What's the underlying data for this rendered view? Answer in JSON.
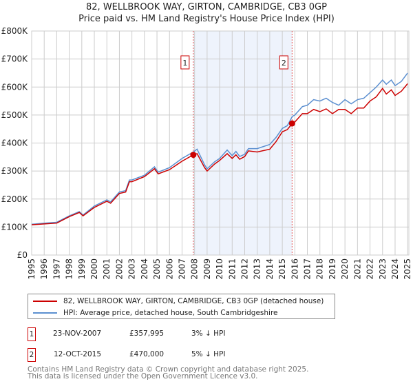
{
  "title": "82, WELLBROOK WAY, GIRTON, CAMBRIDGE, CB3 0GP",
  "subtitle": "Price paid vs. HM Land Registry's House Price Index (HPI)",
  "chart_data": {
    "type": "line",
    "title": "82, WELLBROOK WAY, GIRTON, CAMBRIDGE, CB3 0GP",
    "subtitle": "Price paid vs. HM Land Registry's House Price Index (HPI)",
    "xlim": [
      1995,
      2025.1
    ],
    "ylim": [
      0,
      800000
    ],
    "yticks": [
      0,
      100000,
      200000,
      300000,
      400000,
      500000,
      600000,
      700000,
      800000
    ],
    "ytick_labels": [
      "£0",
      "£100K",
      "£200K",
      "£300K",
      "£400K",
      "£500K",
      "£600K",
      "£700K",
      "£800K"
    ],
    "xticks": [
      "1995",
      "1996",
      "1997",
      "1998",
      "1999",
      "2000",
      "2001",
      "2002",
      "2003",
      "2004",
      "2005",
      "2006",
      "2007",
      "2008",
      "2009",
      "2010",
      "2011",
      "2012",
      "2013",
      "2014",
      "2015",
      "2016",
      "2017",
      "2018",
      "2019",
      "2020",
      "2021",
      "2022",
      "2023",
      "2024",
      "2025"
    ],
    "grid": true,
    "colors": {
      "property": "#cc0000",
      "hpi": "#5b8fd0",
      "shade": "#eef3fc"
    },
    "x": [
      1995,
      1996,
      1997,
      1998,
      1998.8,
      1999.1,
      2000,
      2001,
      2001.3,
      2002,
      2002.5,
      2002.8,
      2003,
      2004,
      2004.8,
      2005.1,
      2006,
      2007,
      2007.9,
      2008.2,
      2008.8,
      2009,
      2009.6,
      2010,
      2010.6,
      2011,
      2011.3,
      2011.6,
      2012,
      2012.3,
      2013,
      2014,
      2014.5,
      2015,
      2015.4,
      2015.8,
      2016,
      2016.6,
      2017,
      2017.5,
      2018,
      2018.5,
      2019,
      2019.5,
      2020,
      2020.5,
      2021,
      2021.5,
      2022,
      2022.5,
      2023,
      2023.3,
      2023.7,
      2024,
      2024.5,
      2025
    ],
    "series": [
      {
        "name": "82, WELLBROOK WAY, GIRTON, CAMBRIDGE, CB3 0GP (detached house)",
        "values": [
          108,
          111,
          114,
          137,
          152,
          140,
          170,
          192,
          185,
          220,
          225,
          262,
          262,
          280,
          308,
          290,
          305,
          335,
          358,
          362,
          312,
          300,
          325,
          338,
          362,
          345,
          358,
          342,
          352,
          372,
          368,
          378,
          405,
          440,
          448,
          470,
          475,
          505,
          505,
          520,
          512,
          522,
          505,
          520,
          520,
          505,
          525,
          525,
          550,
          565,
          595,
          575,
          590,
          570,
          585,
          612
        ]
      },
      {
        "name": "HPI: Average price, detached house, South Cambridgeshire",
        "values": [
          110,
          114,
          117,
          140,
          155,
          143,
          175,
          197,
          190,
          225,
          230,
          268,
          268,
          285,
          315,
          296,
          312,
          345,
          368,
          378,
          322,
          308,
          333,
          345,
          375,
          355,
          370,
          352,
          360,
          380,
          380,
          395,
          420,
          452,
          462,
          495,
          500,
          530,
          535,
          555,
          550,
          560,
          545,
          535,
          555,
          540,
          555,
          560,
          580,
          600,
          625,
          610,
          625,
          605,
          620,
          650
        ]
      }
    ],
    "sales": [
      {
        "label": "1",
        "x": 2007.9,
        "price": 357995
      },
      {
        "label": "2",
        "x": 2015.78,
        "price": 470000
      }
    ]
  },
  "legend": {
    "property": "82, WELLBROOK WAY, GIRTON, CAMBRIDGE, CB3 0GP (detached house)",
    "hpi": "HPI: Average price, detached house, South Cambridgeshire"
  },
  "transactions": [
    {
      "num": "1",
      "date": "23-NOV-2007",
      "price": "£357,995",
      "delta": "3% ↓ HPI"
    },
    {
      "num": "2",
      "date": "12-OCT-2015",
      "price": "£470,000",
      "delta": "5% ↓ HPI"
    }
  ],
  "footer": {
    "line1": "Contains HM Land Registry data © Crown copyright and database right 2025.",
    "line2": "This data is licensed under the Open Government Licence v3.0."
  }
}
